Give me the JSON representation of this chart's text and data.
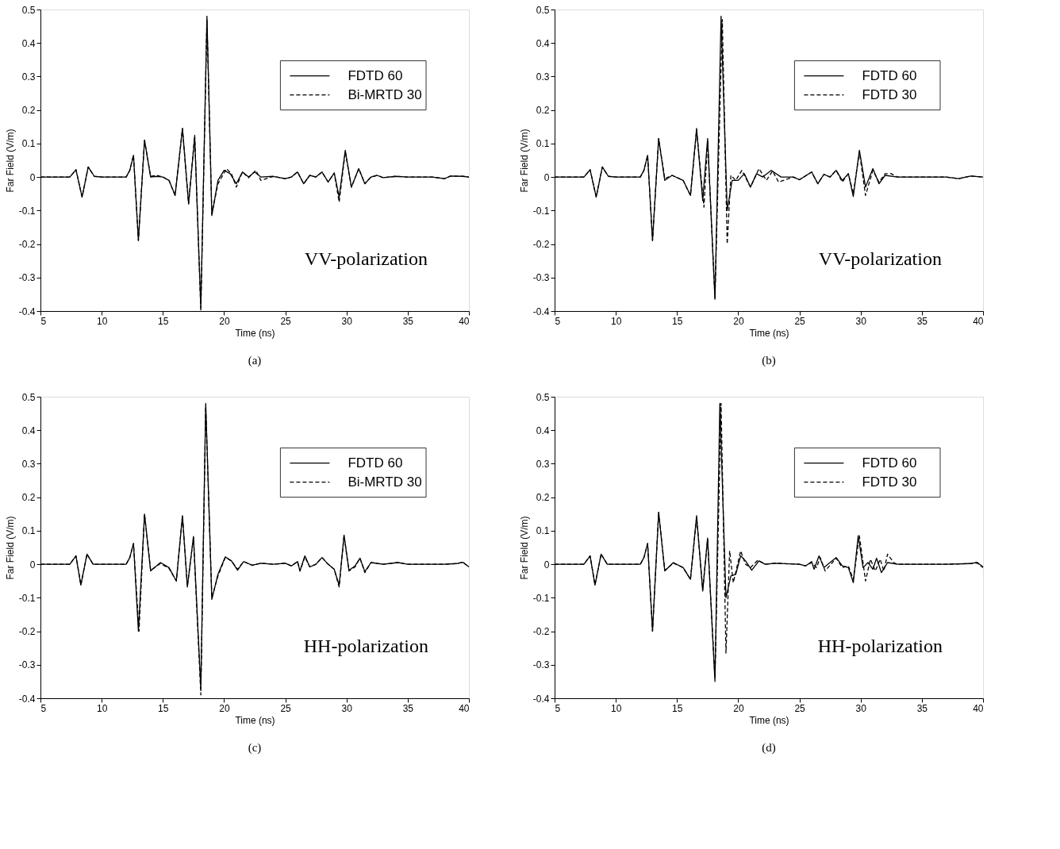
{
  "chart_data": [
    {
      "type": "line",
      "xlabel": "Time (ns)",
      "ylabel": "Far Field (V/m)",
      "xlim": [
        5,
        40
      ],
      "ylim": [
        -0.4,
        0.5
      ],
      "xticks": [
        5,
        10,
        15,
        20,
        25,
        30,
        35,
        40
      ],
      "yticks": [
        -0.4,
        -0.3,
        -0.2,
        -0.1,
        0,
        0.1,
        0.2,
        0.3,
        0.4,
        0.5
      ],
      "grid": false,
      "legend": "top right",
      "annotations": [
        "VV-polarization",
        "(a)"
      ],
      "series": [
        {
          "name": "FDTD 60",
          "color": "#000000",
          "line_style": "solid",
          "x": [
            5,
            7.4,
            7.9,
            8.4,
            8.9,
            9.4,
            10,
            12,
            12.3,
            12.6,
            13,
            13.5,
            14,
            14.5,
            15,
            15.5,
            16,
            16.6,
            17.1,
            17.6,
            18.1,
            18.6,
            19.0,
            19.5,
            20,
            20.5,
            21,
            21.5,
            22,
            22.5,
            23,
            24,
            25,
            25.5,
            26,
            26.5,
            27,
            27.5,
            28,
            28.5,
            29,
            29.4,
            29.9,
            30.4,
            31,
            31.5,
            32,
            32.5,
            33,
            34,
            35,
            37,
            38,
            38.5,
            39.5,
            40
          ],
          "values": [
            0,
            0,
            0.022,
            -0.06,
            0.03,
            0.002,
            0,
            0,
            0.02,
            0.065,
            -0.19,
            0.11,
            0,
            0.002,
            0,
            -0.01,
            -0.055,
            0.145,
            -0.08,
            0.12,
            -0.39,
            0.48,
            -0.115,
            -0.01,
            0.02,
            0.01,
            -0.02,
            0.015,
            0,
            0.015,
            0,
            0.002,
            -0.005,
            0,
            0.015,
            -0.02,
            0.005,
            0,
            0.015,
            -0.015,
            0.012,
            -0.06,
            0.08,
            -0.03,
            0.025,
            -0.02,
            0,
            0.005,
            -0.002,
            0.002,
            0,
            0,
            -0.005,
            0.003,
            0.002,
            0
          ]
        },
        {
          "name": "Bi-MRTD 30",
          "color": "#000000",
          "line_style": "dashed",
          "x": [
            5,
            7.4,
            7.9,
            8.4,
            8.9,
            9.4,
            10,
            12,
            12.3,
            12.6,
            13,
            13.5,
            14,
            14.5,
            15,
            15.5,
            16,
            16.6,
            17.1,
            17.6,
            18.1,
            18.6,
            19.0,
            19.5,
            20.2,
            20.6,
            21,
            21.5,
            22,
            22.6,
            23,
            24,
            25,
            25.5,
            26,
            26.5,
            27,
            27.5,
            28,
            28.5,
            29,
            29.4,
            29.9,
            30.4,
            31,
            31.5,
            32,
            32.5,
            33,
            34,
            35,
            37,
            38,
            38.5,
            39.5,
            40
          ],
          "values": [
            0,
            0,
            0.022,
            -0.06,
            0.03,
            0.002,
            0,
            0,
            0.02,
            0.065,
            -0.19,
            0.11,
            0.002,
            0.005,
            0,
            -0.01,
            -0.055,
            0.145,
            -0.08,
            0.125,
            -0.4,
            0.47,
            -0.11,
            -0.02,
            0.025,
            0.01,
            -0.03,
            0.015,
            -0.002,
            0.02,
            -0.01,
            0.002,
            -0.005,
            0,
            0.015,
            -0.02,
            0.005,
            0,
            0.015,
            -0.015,
            0.012,
            -0.075,
            0.075,
            -0.03,
            0.025,
            -0.02,
            0,
            0.005,
            -0.002,
            0.002,
            0,
            0,
            -0.005,
            0.003,
            0.002,
            0
          ]
        }
      ]
    },
    {
      "type": "line",
      "xlabel": "Time (ns)",
      "ylabel": "Far Field (V/m)",
      "xlim": [
        5,
        40
      ],
      "ylim": [
        -0.4,
        0.5
      ],
      "xticks": [
        5,
        10,
        15,
        20,
        25,
        30,
        35,
        40
      ],
      "yticks": [
        -0.4,
        -0.3,
        -0.2,
        -0.1,
        0,
        0.1,
        0.2,
        0.3,
        0.4,
        0.5
      ],
      "grid": false,
      "legend": "top right",
      "annotations": [
        "VV-polarization",
        "(b)"
      ],
      "series": [
        {
          "name": "FDTD 60",
          "color": "#000000",
          "line_style": "solid",
          "x": [
            5,
            7.4,
            7.9,
            8.4,
            8.9,
            9.4,
            10,
            12,
            12.3,
            12.6,
            13,
            13.5,
            14,
            14.6,
            15.5,
            16.1,
            16.6,
            17.1,
            17.5,
            18.1,
            18.6,
            19.1,
            19.5,
            20,
            20.5,
            21,
            21.5,
            22,
            22.7,
            23.5,
            24.5,
            25,
            26,
            26.5,
            27,
            27.5,
            28,
            28.5,
            29,
            29.4,
            29.9,
            30.4,
            31,
            31.5,
            32,
            33,
            35,
            37,
            38,
            39,
            40
          ],
          "values": [
            0,
            0,
            0.022,
            -0.06,
            0.03,
            0.002,
            0,
            0,
            0.02,
            0.065,
            -0.19,
            0.115,
            -0.01,
            0.005,
            -0.01,
            -0.055,
            0.145,
            -0.07,
            0.115,
            -0.365,
            0.48,
            -0.1,
            -0.01,
            -0.01,
            0.01,
            -0.03,
            0.01,
            0,
            0.02,
            0,
            0,
            -0.008,
            0.015,
            -0.02,
            0.008,
            0,
            0.02,
            -0.01,
            0.01,
            -0.058,
            0.08,
            -0.03,
            0.025,
            -0.02,
            0.005,
            0,
            0,
            0,
            -0.005,
            0.003,
            0
          ]
        },
        {
          "name": "FDTD 30",
          "color": "#000000",
          "line_style": "dashed",
          "x": [
            5,
            7.4,
            7.9,
            8.4,
            8.9,
            9.4,
            10,
            12,
            12.3,
            12.6,
            13,
            13.5,
            14,
            14.6,
            15.5,
            16.1,
            16.6,
            17.2,
            17.5,
            18.1,
            18.7,
            19.1,
            19.4,
            19.8,
            20.3,
            21,
            21.7,
            22.3,
            22.8,
            23.3,
            24.5,
            25,
            26,
            26.5,
            27,
            27.5,
            28,
            28.5,
            29,
            29.4,
            29.9,
            30.4,
            31,
            31.5,
            32,
            32.5,
            33,
            35,
            37,
            38,
            39,
            40
          ],
          "values": [
            0,
            0,
            0.022,
            -0.06,
            0.03,
            0.002,
            0,
            0,
            0.02,
            0.065,
            -0.19,
            0.115,
            -0.005,
            0.005,
            -0.01,
            -0.055,
            0.14,
            -0.09,
            0.11,
            -0.36,
            0.47,
            -0.2,
            0.005,
            -0.01,
            0.02,
            -0.03,
            0.025,
            -0.01,
            0.018,
            -0.015,
            0,
            -0.008,
            0.015,
            -0.02,
            0.008,
            0,
            0.02,
            -0.015,
            0.01,
            -0.05,
            0.075,
            -0.055,
            0.02,
            -0.015,
            0.01,
            0.01,
            0,
            0,
            0,
            -0.005,
            0.003,
            0
          ]
        }
      ]
    },
    {
      "type": "line",
      "xlabel": "Time (ns)",
      "ylabel": "Far Field (V/m)",
      "xlim": [
        5,
        40
      ],
      "ylim": [
        -0.4,
        0.5
      ],
      "xticks": [
        5,
        10,
        15,
        20,
        25,
        30,
        35,
        40
      ],
      "yticks": [
        -0.4,
        -0.3,
        -0.2,
        -0.1,
        0,
        0.1,
        0.2,
        0.3,
        0.4,
        0.5
      ],
      "grid": false,
      "legend": "top right",
      "annotations": [
        "HH-polarization",
        "(c)"
      ],
      "series": [
        {
          "name": "FDTD 60",
          "color": "#000000",
          "line_style": "solid",
          "x": [
            5,
            7.4,
            7.9,
            8.3,
            8.8,
            9.3,
            10,
            12,
            12.3,
            12.6,
            13,
            13.5,
            14,
            14.8,
            15.5,
            16.1,
            16.6,
            17,
            17.5,
            18.1,
            18.5,
            19,
            19.5,
            20.1,
            20.6,
            21.1,
            21.6,
            22.3,
            23,
            24,
            25,
            25.5,
            26,
            26.2,
            26.6,
            27,
            27.5,
            28,
            28.5,
            29,
            29.4,
            29.8,
            30.2,
            30.7,
            31.1,
            31.5,
            32,
            33,
            34.2,
            35,
            37,
            38,
            39,
            39.5,
            40
          ],
          "values": [
            0,
            0,
            0.025,
            -0.062,
            0.03,
            0,
            0,
            0,
            0.02,
            0.062,
            -0.2,
            0.15,
            -0.02,
            0.005,
            -0.01,
            -0.05,
            0.145,
            -0.068,
            0.083,
            -0.37,
            0.48,
            -0.105,
            -0.03,
            0.022,
            0.01,
            -0.018,
            0.008,
            -0.003,
            0.003,
            0,
            0.003,
            -0.005,
            0.008,
            -0.02,
            0.025,
            -0.008,
            0,
            0.02,
            0,
            -0.015,
            -0.063,
            0.087,
            -0.018,
            -0.005,
            0.018,
            -0.022,
            0.005,
            0,
            0.005,
            0,
            0,
            0,
            0.002,
            0.006,
            -0.008
          ]
        },
        {
          "name": "Bi-MRTD 30",
          "color": "#000000",
          "line_style": "dashed",
          "x": [
            5,
            7.4,
            7.9,
            8.3,
            8.8,
            9.3,
            10,
            12,
            12.3,
            12.6,
            13.05,
            13.5,
            14,
            14.8,
            15.5,
            16.1,
            16.6,
            17,
            17.5,
            18.1,
            18.5,
            19,
            19.5,
            20.1,
            20.6,
            21.1,
            21.6,
            22.3,
            23,
            24,
            25,
            25.5,
            26,
            26.2,
            26.6,
            27,
            27.5,
            28,
            28.5,
            29,
            29.4,
            29.8,
            30.2,
            30.7,
            31.1,
            31.5,
            32,
            33,
            34.2,
            35,
            37,
            38,
            39,
            39.5,
            40
          ],
          "values": [
            0,
            0,
            0.025,
            -0.062,
            0.03,
            0,
            0,
            0,
            0.02,
            0.062,
            -0.2,
            0.15,
            -0.018,
            0.002,
            -0.012,
            -0.05,
            0.145,
            -0.065,
            0.08,
            -0.39,
            0.47,
            -0.1,
            -0.035,
            0.02,
            0.01,
            -0.015,
            0.008,
            -0.003,
            0.003,
            0,
            0.003,
            -0.005,
            0.008,
            -0.02,
            0.022,
            -0.008,
            0,
            0.02,
            0,
            -0.015,
            -0.068,
            0.085,
            -0.02,
            -0.008,
            0.018,
            -0.025,
            0.005,
            0,
            0.005,
            0,
            0,
            0,
            0.002,
            0.006,
            -0.008
          ]
        }
      ]
    },
    {
      "type": "line",
      "xlabel": "Time (ns)",
      "ylabel": "Far Field (V/m)",
      "xlim": [
        5,
        40
      ],
      "ylim": [
        -0.4,
        0.5
      ],
      "xticks": [
        5,
        10,
        15,
        20,
        25,
        30,
        35,
        40
      ],
      "yticks": [
        -0.4,
        -0.3,
        -0.2,
        -0.1,
        0,
        0.1,
        0.2,
        0.3,
        0.4,
        0.5
      ],
      "grid": false,
      "legend": "top right",
      "annotations": [
        "HH-polarization",
        "(d)"
      ],
      "series": [
        {
          "name": "FDTD 60",
          "color": "#000000",
          "line_style": "solid",
          "x": [
            5,
            7.4,
            7.9,
            8.3,
            8.8,
            9.3,
            10,
            12,
            12.3,
            12.6,
            13,
            13.5,
            14,
            14.7,
            15.5,
            16.1,
            16.6,
            17.1,
            17.5,
            18.1,
            18.5,
            19,
            19.4,
            19.8,
            20.2,
            20.6,
            21.1,
            21.7,
            22.2,
            23,
            25,
            25.5,
            26,
            26.2,
            26.6,
            27,
            28,
            28.5,
            29,
            29.4,
            29.8,
            30.2,
            30.6,
            31,
            31.3,
            31.7,
            32.2,
            33,
            35,
            37,
            39,
            39.5,
            40
          ],
          "values": [
            0,
            0,
            0.025,
            -0.062,
            0.03,
            0,
            0,
            0,
            0.02,
            0.062,
            -0.2,
            0.155,
            -0.02,
            0.005,
            -0.01,
            -0.045,
            0.145,
            -0.08,
            0.078,
            -0.35,
            0.48,
            -0.1,
            -0.035,
            -0.03,
            0.025,
            0.01,
            -0.018,
            0.01,
            0,
            0.003,
            0,
            -0.005,
            0.008,
            -0.015,
            0.025,
            -0.01,
            0.02,
            -0.005,
            -0.01,
            -0.055,
            0.085,
            -0.01,
            0.005,
            -0.015,
            0.018,
            -0.025,
            0.005,
            0,
            0,
            0,
            0.002,
            0.006,
            -0.008
          ]
        },
        {
          "name": "FDTD 30",
          "color": "#000000",
          "line_style": "dashed",
          "x": [
            5,
            7.4,
            7.9,
            8.3,
            8.8,
            9.3,
            10,
            12,
            12.3,
            12.6,
            13,
            13.5,
            14,
            14.7,
            15.5,
            16.1,
            16.6,
            17.1,
            17.5,
            18.1,
            18.6,
            19.0,
            19.3,
            19.6,
            20.2,
            20.6,
            21,
            21.6,
            22.2,
            23,
            25,
            25.5,
            26,
            26.4,
            26.7,
            27.1,
            28,
            28.5,
            29,
            29.4,
            29.9,
            30.4,
            30.8,
            31.2,
            31.6,
            31.9,
            32.2,
            32.7,
            33,
            35,
            37,
            39,
            39.5,
            40
          ],
          "values": [
            0,
            0,
            0.025,
            -0.062,
            0.03,
            0,
            0,
            0,
            0.02,
            0.062,
            -0.2,
            0.155,
            -0.018,
            0.003,
            -0.01,
            -0.045,
            0.14,
            -0.075,
            0.075,
            -0.34,
            0.48,
            -0.265,
            0.04,
            -0.055,
            0.04,
            0,
            -0.01,
            0.012,
            0,
            0.003,
            0,
            -0.005,
            0.005,
            -0.01,
            0.02,
            -0.02,
            0.018,
            -0.01,
            -0.005,
            -0.045,
            0.085,
            -0.05,
            0.015,
            -0.02,
            0.015,
            -0.02,
            0.03,
            0.005,
            0,
            0,
            0,
            0.002,
            0.004,
            -0.01
          ]
        }
      ]
    }
  ]
}
